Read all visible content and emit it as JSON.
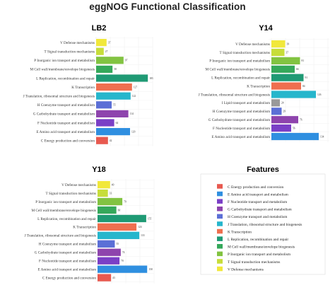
{
  "figure": {
    "title": "eggNOG Functional Classification"
  },
  "colors": {
    "C": "#e8594f",
    "E": "#2f8fe0",
    "F": "#7a3fc6",
    "G": "#8e44ad",
    "H": "#5b6fd6",
    "J": "#26b6cc",
    "K": "#ef6f4f",
    "L": "#1f9a74",
    "M": "#35a85a",
    "P": "#82c341",
    "T": "#c7dd3a",
    "V": "#f1e83b"
  },
  "chart_data": [
    {
      "type": "bar",
      "title": "LB2",
      "categories": [
        "V Defense mechanisms",
        "T Signal transduction mechanisms",
        "P Inorganic ion transport and metabolism",
        "M Cell wall/membrane/envelope biogenesis",
        "L Replication, recombination and repair",
        "K Transcription",
        "J Translation, ribosomal structure and biogenesis",
        "H Coenzyme transport and metabolism",
        "G Carbohydrate transport and metabolism",
        "F Nucleotide transport and metabolism",
        "E Amino acid transport and metabolism",
        "C Energy production and conversion"
      ],
      "codes": [
        "V",
        "T",
        "P",
        "M",
        "L",
        "K",
        "J",
        "H",
        "G",
        "F",
        "E",
        "C"
      ],
      "values": [
        37,
        27,
        97,
        58,
        183,
        127,
        122,
        55,
        114,
        64,
        120,
        42
      ],
      "xlim": [
        0,
        200
      ]
    },
    {
      "type": "bar",
      "title": "Y14",
      "categories": [
        "V Defense mechanisms",
        "T Signal transduction mechanisms",
        "P Inorganic ion transport and metabolism",
        "M Cell wall/membrane/envelope biogenesis",
        "L Replication, recombination and repair",
        "K Transcription",
        "J Translation, ribosomal structure and biogenesis",
        "I Lipid transport and metabolism",
        "H Coenzyme transport and metabolism",
        "G Carbohydrate transport and metabolism",
        "F Nucleotide transport and metabolism",
        "E Amino acid transport and metabolism"
      ],
      "codes": [
        "V",
        "T",
        "P",
        "M",
        "L",
        "K",
        "J",
        "I",
        "H",
        "G",
        "F",
        "E"
      ],
      "values": [
        39,
        37,
        81,
        66,
        91,
        84,
        126,
        24,
        29,
        76,
        56,
        134
      ],
      "xlim": [
        0,
        160
      ]
    },
    {
      "type": "bar",
      "title": "Y18",
      "categories": [
        "V Defense mechanisms",
        "T Signal transduction mechanisms",
        "P Inorganic ion transport and metabolism",
        "M Cell wall/membrane/envelope biogenesis",
        "L Replication, recombination and repair",
        "K Transcription",
        "J Translation, ribosomal structure and biogenesis",
        "H Coenzyme transport and metabolism",
        "G Carbohydrate transport and metabolism",
        "F Nucleotide transport and metabolism",
        "E Amino acid transport and metabolism",
        "C Energy production and conversion"
      ],
      "codes": [
        "V",
        "T",
        "P",
        "M",
        "L",
        "K",
        "J",
        "H",
        "G",
        "F",
        "E",
        "C"
      ],
      "values": [
        40,
        33,
        79,
        60,
        155,
        124,
        133,
        55,
        74,
        70,
        158,
        43
      ],
      "xlim": [
        0,
        180
      ]
    }
  ],
  "legend": {
    "title": "Features",
    "items": [
      {
        "code": "C",
        "label": "C Energy production and conversion"
      },
      {
        "code": "E",
        "label": "E Amino acid transport and metabolism"
      },
      {
        "code": "F",
        "label": "F Nucleotide transport and metabolism"
      },
      {
        "code": "G",
        "label": "G Carbohydrate transport and metabolism"
      },
      {
        "code": "H",
        "label": "H Coenzyme transport and metabolism"
      },
      {
        "code": "J",
        "label": "J Translation, ribosomal structure and biogenesis"
      },
      {
        "code": "K",
        "label": "K Transcription"
      },
      {
        "code": "L",
        "label": "L Replication, recombination and repair"
      },
      {
        "code": "M",
        "label": "M Cell wall/membrane/envelope biogenesis"
      },
      {
        "code": "P",
        "label": "P Inorganic ion transport and metabolism"
      },
      {
        "code": "T",
        "label": "T Signal transduction mechanisms"
      },
      {
        "code": "V",
        "label": "V Defense mechanisms"
      }
    ]
  }
}
